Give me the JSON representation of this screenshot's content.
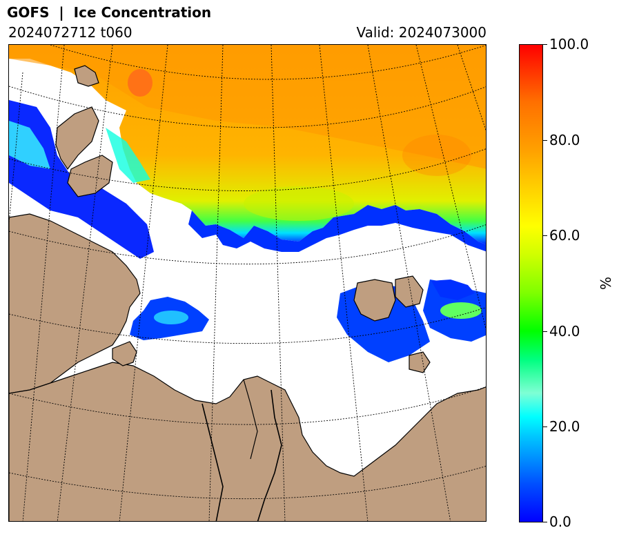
{
  "header": {
    "title": "GOFS  |  Ice Concentration",
    "init_time": "2024072712 t060",
    "valid_time": "Valid: 2024073000"
  },
  "colorbar": {
    "ticks": [
      "0.0",
      "20.0",
      "40.0",
      "60.0",
      "80.0",
      "100.0"
    ],
    "tick_values": [
      0,
      20,
      40,
      60,
      80,
      100
    ],
    "unit": "%",
    "colors": {
      "low": "#0000ff",
      "low_mid": "#00ffff",
      "mid": "#00ff00",
      "high_mid": "#ffff00",
      "high": "#ff9900",
      "max": "#ff0000"
    }
  },
  "map": {
    "land_color": "#bf9e80",
    "open_water_color": "#ffffff",
    "graticule": "dotted"
  }
}
